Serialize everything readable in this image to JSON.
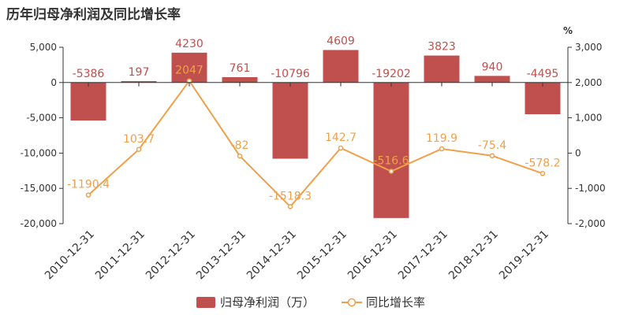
{
  "chart_data": {
    "type": "bar+line",
    "title": "历年归母净利润及同比增长率",
    "categories": [
      "2010-12-31",
      "2011-12-31",
      "2012-12-31",
      "2013-12-31",
      "2014-12-31",
      "2015-12-31",
      "2016-12-31",
      "2017-12-31",
      "2018-12-31",
      "2019-12-31"
    ],
    "series": [
      {
        "name": "归母净利润（万）",
        "type": "bar",
        "axis": "left",
        "values": [
          -5386,
          197,
          4230,
          761,
          -10796,
          4609,
          -19202,
          3823,
          940,
          -4495
        ],
        "color": "#c0504d",
        "label_color": "#c0504d"
      },
      {
        "name": "同比增长率",
        "type": "line",
        "axis": "right",
        "values": [
          -1190.4,
          103.7,
          2047,
          -82,
          -1518.3,
          142.7,
          -516.6,
          119.9,
          -75.4,
          -578.2
        ],
        "color": "#f0a04a",
        "label_color": "#f0a04a"
      }
    ],
    "left_axis": {
      "min": -20000,
      "max": 5000,
      "ticks": [
        "5,000",
        "0",
        "-5,000",
        "-10,000",
        "-15,000",
        "-20,000"
      ]
    },
    "right_axis": {
      "label": "%",
      "min": -2000,
      "max": 3000,
      "ticks": [
        "3,000",
        "2,000",
        "1,000",
        "0",
        "-1,000",
        "-2,000"
      ]
    },
    "bar_labels": [
      "-5386",
      "197",
      "4230",
      "761",
      "-10796",
      "4609",
      "-19202",
      "3823",
      "940",
      "-4495"
    ],
    "line_labels": [
      "-1190.4",
      "103.7",
      "2047",
      "-82",
      "-1518.3",
      "142.7",
      "-516.6",
      "119.9",
      "-75.4",
      "-578.2"
    ],
    "legend_position": "bottom",
    "grid": false
  }
}
